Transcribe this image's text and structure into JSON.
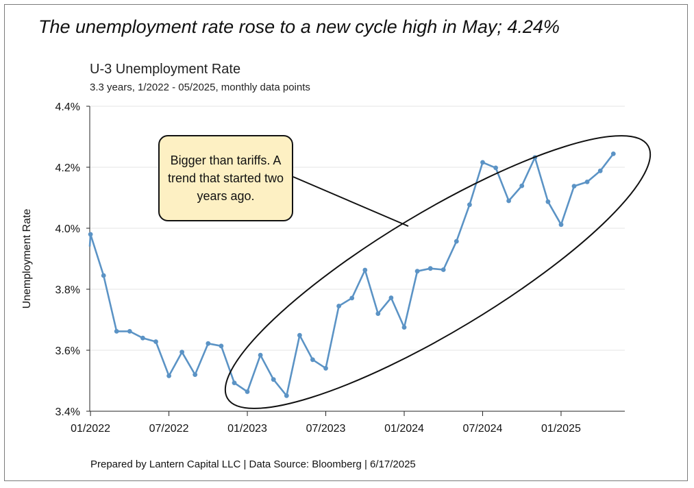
{
  "headline": "The unemployment rate rose to a new cycle high in May; 4.24%",
  "footer": "Prepared by Lantern Capital LLC | Data Source: Bloomberg | 6/17/2025",
  "callout": "Bigger than tariffs. A trend that started two years ago.",
  "colors": {
    "line": "#5b93c5",
    "grid": "#e3e3e3",
    "axis": "#222222",
    "callout_fill": "#fdf0c3"
  },
  "chart_data": {
    "type": "line",
    "title": "U-3 Unemployment Rate",
    "subtitle": "3.3 years, 1/2022 - 05/2025, monthly data points",
    "ylabel": "Unemployment Rate",
    "xlabel": "",
    "ylim": [
      3.4,
      4.4
    ],
    "yticks": [
      3.4,
      3.6,
      3.8,
      4.0,
      4.2,
      4.4
    ],
    "ytick_labels": [
      "3.4%",
      "3.6%",
      "3.8%",
      "4.0%",
      "4.2%",
      "4.4%"
    ],
    "xticks": [
      "2022-01",
      "2022-07",
      "2023-01",
      "2023-07",
      "2024-01",
      "2024-07",
      "2025-01"
    ],
    "xtick_labels": [
      "01/2022",
      "07/2022",
      "01/2023",
      "07/2023",
      "01/2024",
      "07/2024",
      "01/2025"
    ],
    "grid": true,
    "series": [
      {
        "name": "",
        "x": [
          "2022-01",
          "2022-02",
          "2022-03",
          "2022-04",
          "2022-05",
          "2022-06",
          "2022-07",
          "2022-08",
          "2022-09",
          "2022-10",
          "2022-11",
          "2022-12",
          "2023-01",
          "2023-02",
          "2023-03",
          "2023-04",
          "2023-05",
          "2023-06",
          "2023-07",
          "2023-08",
          "2023-09",
          "2023-10",
          "2023-11",
          "2023-12",
          "2024-01",
          "2024-02",
          "2024-03",
          "2024-04",
          "2024-05",
          "2024-06",
          "2024-07",
          "2024-08",
          "2024-09",
          "2024-10",
          "2024-11",
          "2024-12",
          "2025-01",
          "2025-02",
          "2025-03",
          "2025-04",
          "2025-05"
        ],
        "values": [
          3.98,
          3.845,
          3.662,
          3.662,
          3.64,
          3.628,
          3.516,
          3.594,
          3.52,
          3.622,
          3.614,
          3.493,
          3.464,
          3.584,
          3.504,
          3.451,
          3.649,
          3.569,
          3.541,
          3.745,
          3.771,
          3.863,
          3.72,
          3.772,
          3.675,
          3.859,
          3.868,
          3.864,
          3.957,
          4.077,
          4.216,
          4.198,
          4.09,
          4.139,
          4.232,
          4.087,
          4.012,
          4.138,
          4.152,
          4.188,
          4.244
        ]
      }
    ],
    "annotations": [
      {
        "type": "ellipse",
        "note": ""
      }
    ]
  }
}
